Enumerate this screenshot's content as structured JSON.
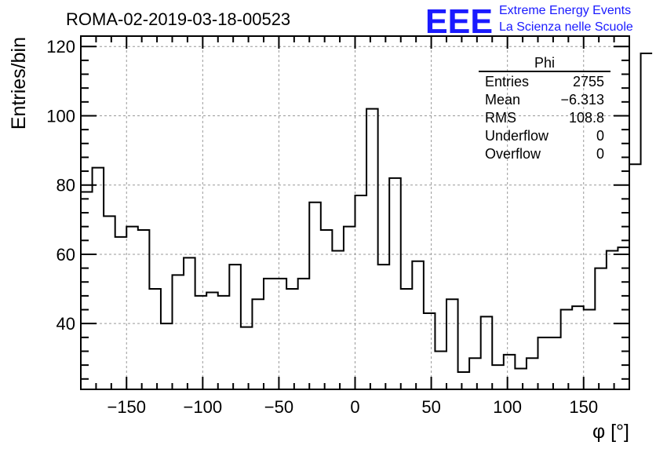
{
  "header": {
    "run_title": "ROMA-02-2019-03-18-00523",
    "logo_text": "EEE",
    "logo_line1": "Extreme Energy Events",
    "logo_line2": "La Scienza nelle Scuole",
    "logo_color": "#1a1aff"
  },
  "stats": {
    "title": "Phi",
    "rows": [
      {
        "label": "Entries",
        "value": "2755"
      },
      {
        "label": "Mean",
        "value": "−6.313"
      },
      {
        "label": "RMS",
        "value": "108.8"
      },
      {
        "label": "Underflow",
        "value": "0"
      },
      {
        "label": "Overflow",
        "value": "0"
      }
    ]
  },
  "chart_data": {
    "type": "histogram",
    "title": "ROMA-02-2019-03-18-00523",
    "xlabel": "φ [°]",
    "ylabel": "Entries/bin",
    "xlim": [
      -180,
      180
    ],
    "ylim": [
      21,
      123
    ],
    "bin_width": 7.5,
    "x_ticks": [
      -150,
      -100,
      -50,
      0,
      50,
      100,
      150
    ],
    "x_tick_labels": [
      "−150",
      "−100",
      "−50",
      "0",
      "50",
      "100",
      "150"
    ],
    "y_ticks": [
      40,
      60,
      80,
      100,
      120
    ],
    "y_tick_labels": [
      "40",
      "60",
      "80",
      "100",
      "120"
    ],
    "grid": true,
    "values": [
      78,
      85,
      71,
      65,
      68,
      67,
      50,
      40,
      54,
      59,
      48,
      49,
      48,
      57,
      39,
      47,
      53,
      53,
      50,
      53,
      75,
      67,
      61,
      68,
      77,
      102,
      57,
      82,
      50,
      58,
      43,
      32,
      47,
      26,
      30,
      42,
      28,
      31,
      27,
      30,
      36,
      36,
      44,
      45,
      44,
      56,
      61,
      62,
      86,
      118
    ]
  }
}
